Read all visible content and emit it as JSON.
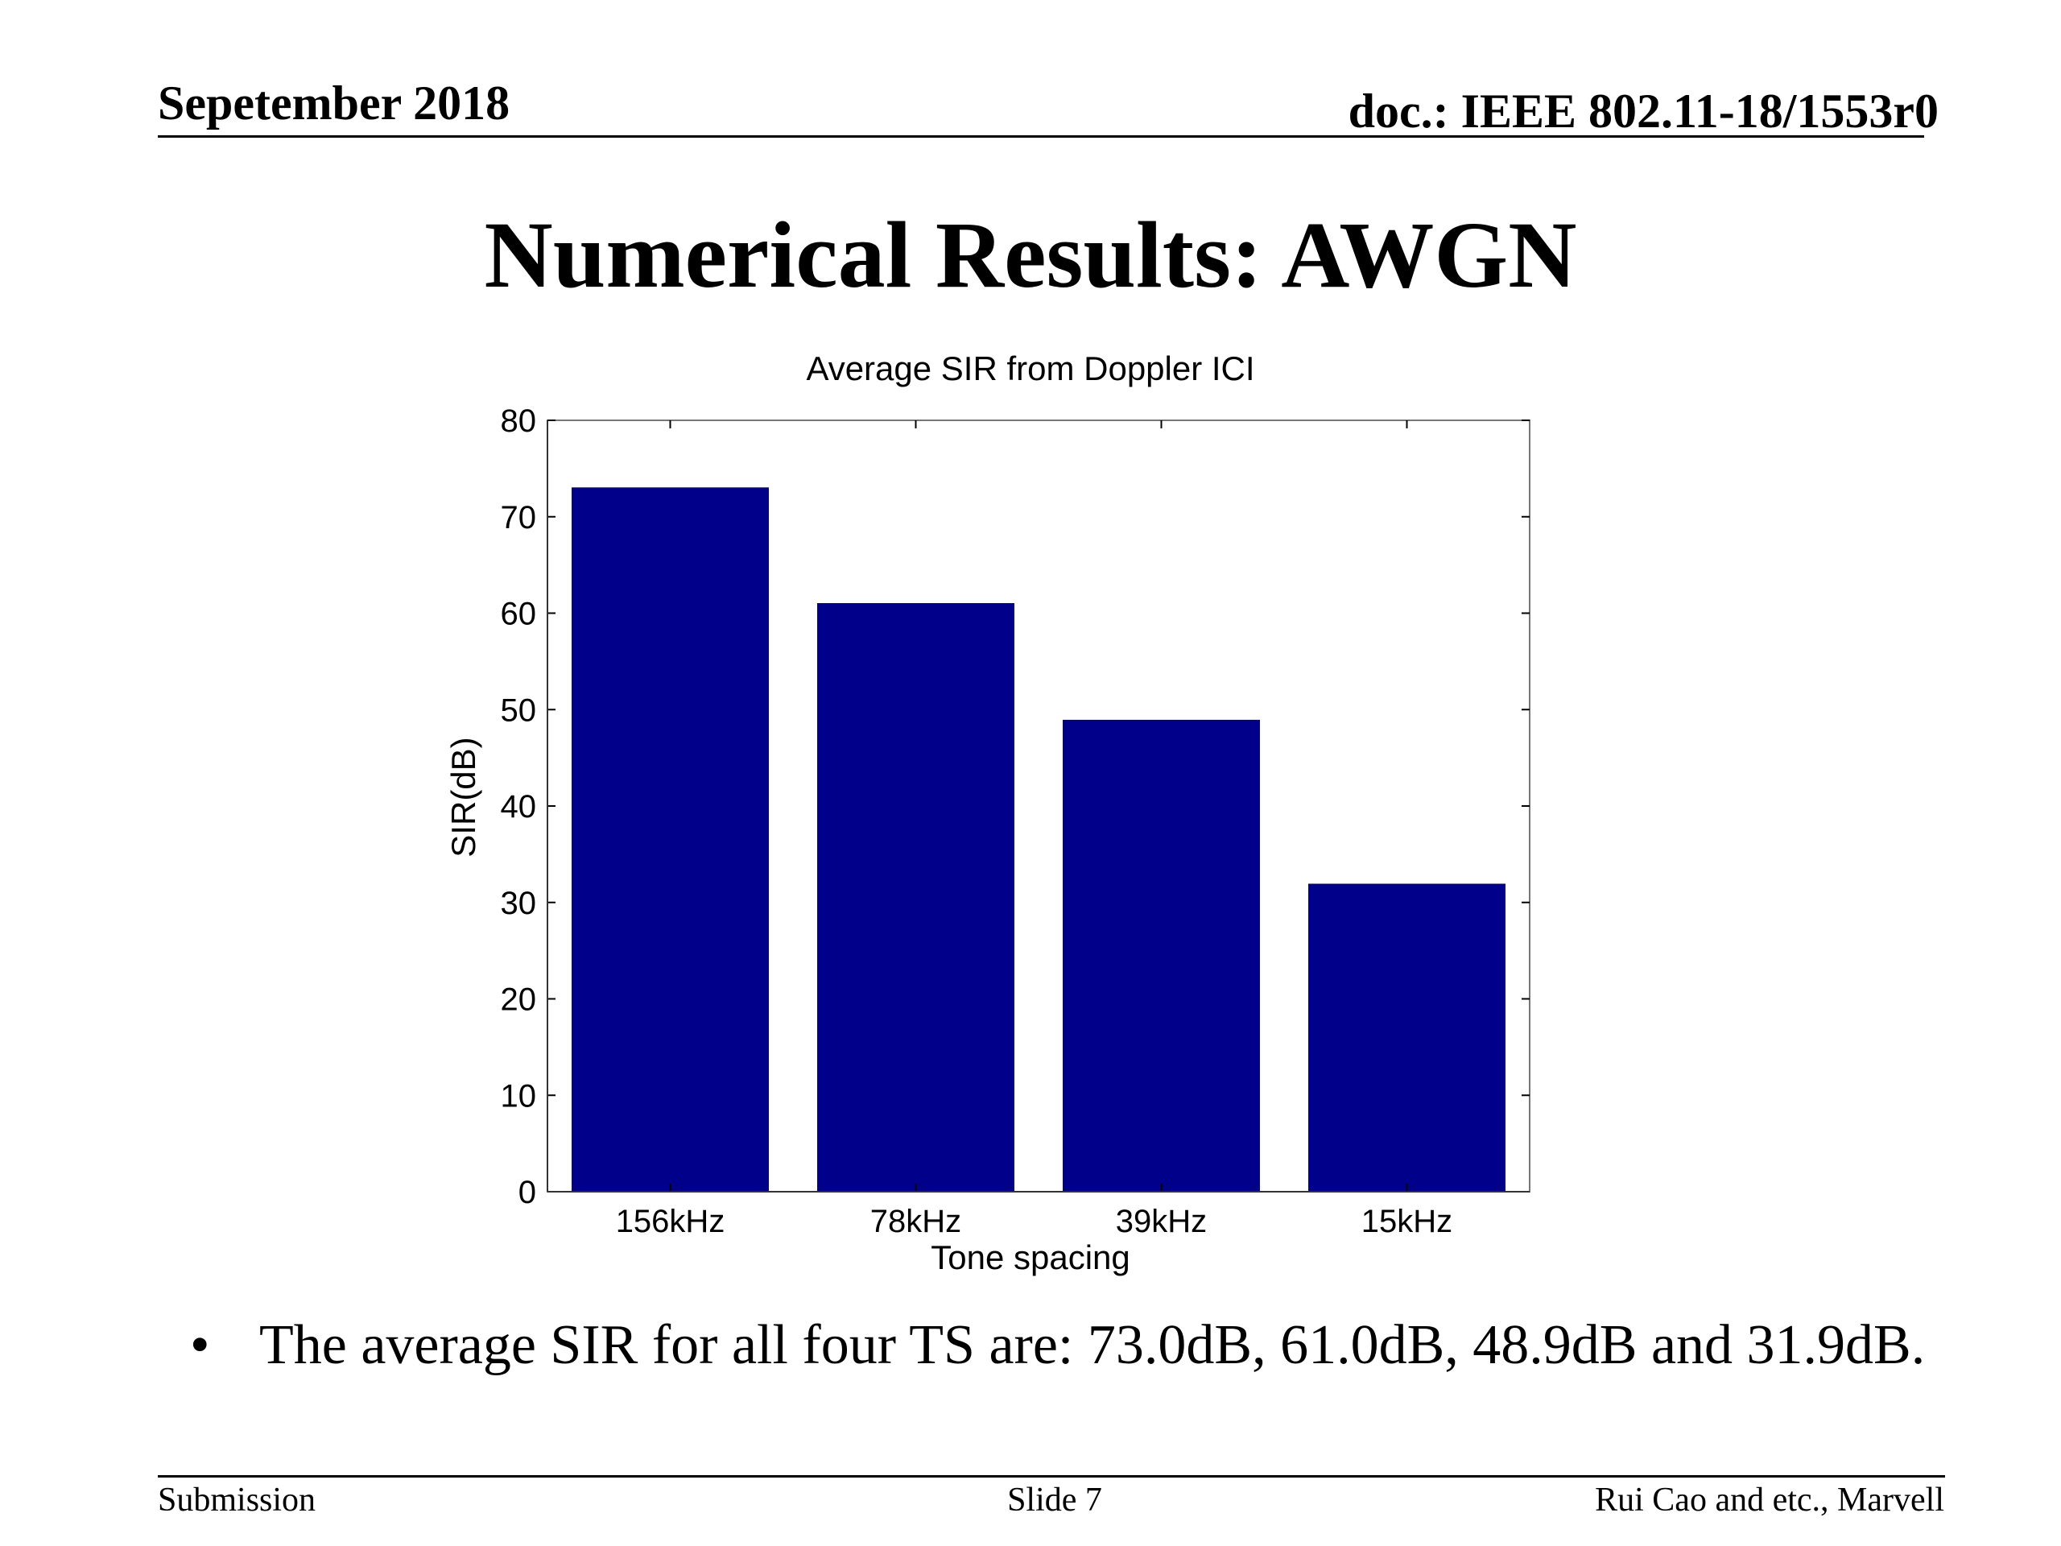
{
  "header": {
    "date": "Sepetember 2018",
    "doc_id": "doc.: IEEE 802.11-18/1553r0"
  },
  "slide_title": "Numerical Results: AWGN",
  "chart_data": {
    "type": "bar",
    "title": "Average SIR from Doppler ICI",
    "xlabel": "Tone spacing",
    "ylabel": "SIR(dB)",
    "categories": [
      "156kHz",
      "78kHz",
      "39kHz",
      "15kHz"
    ],
    "values": [
      73.0,
      61.0,
      48.9,
      31.9
    ],
    "ylim": [
      0,
      80
    ],
    "yticks": [
      0,
      10,
      20,
      30,
      40,
      50,
      60,
      70,
      80
    ],
    "bar_color": "#00008b",
    "grid": false
  },
  "bullets": [
    "The average SIR for all four TS are: 73.0dB, 61.0dB, 48.9dB and 31.9dB."
  ],
  "bullet_symbol": "•",
  "footer": {
    "left": "Submission",
    "center": "Slide 7",
    "right": "Rui Cao and etc., Marvell"
  }
}
